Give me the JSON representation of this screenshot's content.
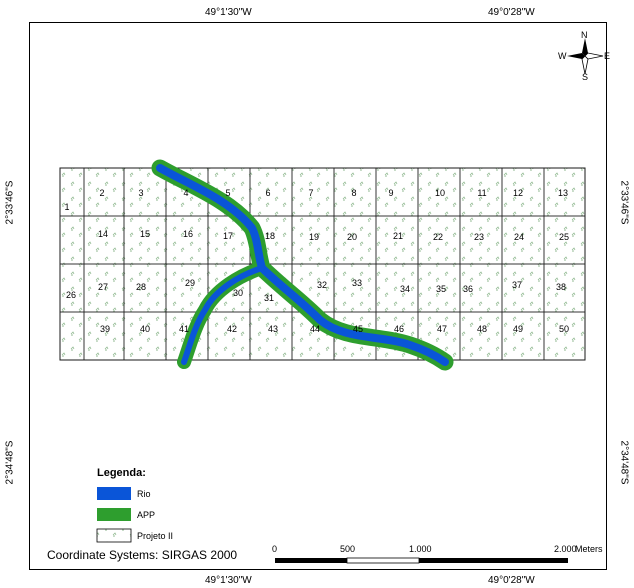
{
  "coordinates": {
    "top_left": "49°1'30\"W",
    "top_right": "49°0'28\"W",
    "bottom_left": "49°1'30\"W",
    "bottom_right": "49°0'28\"W",
    "left_upper": "2°33'46\"S",
    "left_lower": "2°34'48\"S",
    "right_upper": "2°33'46\"S",
    "right_lower": "2°34'48\"S"
  },
  "north_arrow": {
    "n": "N",
    "s": "S",
    "e": "E",
    "w": "W",
    "icon": "north-arrow-icon"
  },
  "legend": {
    "title": "Legenda:",
    "items": [
      {
        "label": "Rio",
        "color": "#0055dd"
      },
      {
        "label": "APP",
        "color": "#2e9e2e"
      },
      {
        "label": "Projeto II",
        "color": "#ffffff"
      }
    ]
  },
  "coordinate_system": "Coordinate Systems: SIRGAS 2000",
  "scale_bar": {
    "labels": [
      "0",
      "500",
      "1.000",
      "2.000"
    ],
    "unit": "Meters"
  },
  "plots": [
    "1",
    "2",
    "3",
    "4",
    "5",
    "6",
    "7",
    "8",
    "9",
    "10",
    "11",
    "12",
    "13",
    "14",
    "15",
    "16",
    "17",
    "18",
    "19",
    "20",
    "21",
    "22",
    "23",
    "24",
    "25",
    "26",
    "27",
    "28",
    "29",
    "30",
    "31",
    "32",
    "33",
    "34",
    "35",
    "36",
    "37",
    "38",
    "39",
    "40",
    "41",
    "42",
    "43",
    "44",
    "45",
    "46",
    "47",
    "48",
    "49",
    "50"
  ]
}
